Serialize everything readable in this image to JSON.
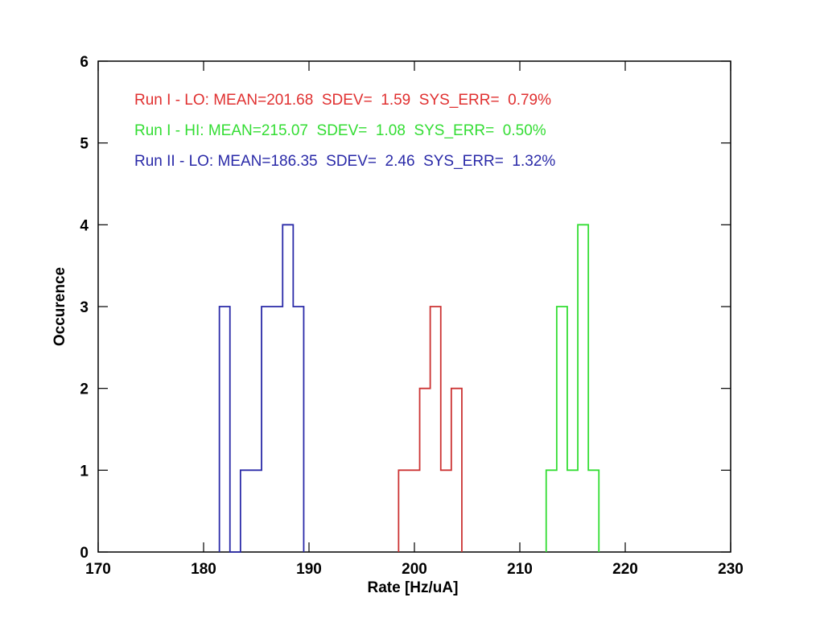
{
  "chart_data": {
    "type": "histogram",
    "xlabel": "Rate [Hz/uA]",
    "ylabel": "Occurence",
    "xlim": [
      170,
      230
    ],
    "ylim": [
      0,
      6
    ],
    "x_ticks": [
      170,
      180,
      190,
      200,
      210,
      220,
      230
    ],
    "y_ticks": [
      0,
      1,
      2,
      3,
      4,
      5,
      6
    ],
    "grid": false,
    "annotations": [
      {
        "text": "Run I - LO: MEAN=201.68  SDEV=  1.59  SYS_ERR=  0.79%",
        "color": "#e03030"
      },
      {
        "text": "Run I - HI: MEAN=215.07  SDEV=  1.08  SYS_ERR=  0.50%",
        "color": "#33dd33"
      },
      {
        "text": "Run II - LO: MEAN=186.35  SDEV=  2.46  SYS_ERR=  1.32%",
        "color": "#2a2aa8"
      }
    ],
    "series": [
      {
        "color": "#2a2aa8",
        "bin_edges": [
          181.5,
          182.5,
          183.5,
          185.5,
          187.5,
          188.5,
          189.5
        ],
        "counts": [
          3,
          0,
          1,
          3,
          4,
          3
        ]
      },
      {
        "color": "#cc3333",
        "bin_edges": [
          198.5,
          200.5,
          201.5,
          202.5,
          203.5,
          204.5
        ],
        "counts": [
          1,
          2,
          3,
          1,
          2
        ]
      },
      {
        "color": "#33dd33",
        "bin_edges": [
          212.5,
          213.5,
          214.5,
          215.5,
          216.5,
          217.5
        ],
        "counts": [
          1,
          3,
          1,
          4,
          1
        ]
      }
    ]
  }
}
